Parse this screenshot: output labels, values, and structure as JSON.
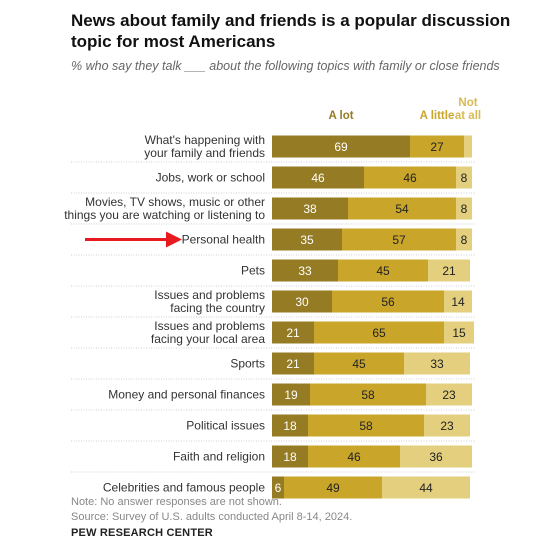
{
  "title": "News about family and friends is a popular discussion topic for most Americans",
  "subtitle": "% who say they talk ___ about the following topics with family or close friends",
  "notes": [
    "Note: No answer responses are not shown.",
    "Source: Survey of U.S. adults conducted April 8-14, 2024."
  ],
  "credit": "PEW RESEARCH CENTER",
  "colors": {
    "a_lot": "#957b24",
    "a_little": "#c9a62a",
    "not_at_all": "#e3cf7d",
    "highlight_arrow": "#e8191f"
  },
  "highlight_category": "Personal health",
  "chart_data": {
    "type": "bar",
    "orientation": "horizontal",
    "stacked": true,
    "xlim": [
      0,
      100
    ],
    "legend_position": "top",
    "categories": [
      [
        "What's happening with",
        "your family and friends"
      ],
      [
        "Jobs, work or school"
      ],
      [
        "Movies, TV shows, music or other",
        "things you are watching or listening to"
      ],
      [
        "Personal health"
      ],
      [
        "Pets"
      ],
      [
        "Issues and problems",
        "facing the country"
      ],
      [
        "Issues and problems",
        "facing your local area"
      ],
      [
        "Sports"
      ],
      [
        "Money and personal finances"
      ],
      [
        "Political issues"
      ],
      [
        "Faith and religion"
      ],
      [
        "Celebrities and famous people"
      ]
    ],
    "series": [
      {
        "name": "A lot",
        "values": [
          69,
          46,
          38,
          35,
          33,
          30,
          21,
          21,
          19,
          18,
          18,
          6
        ]
      },
      {
        "name": "A little",
        "values": [
          27,
          46,
          54,
          57,
          45,
          56,
          65,
          45,
          58,
          58,
          46,
          49
        ]
      },
      {
        "name": "Not at all",
        "values": [
          null,
          8,
          8,
          8,
          21,
          14,
          15,
          33,
          23,
          23,
          36,
          44
        ]
      }
    ],
    "legend_labels": [
      [
        "A lot"
      ],
      [
        "A little"
      ],
      [
        "Not",
        "at all"
      ]
    ]
  }
}
